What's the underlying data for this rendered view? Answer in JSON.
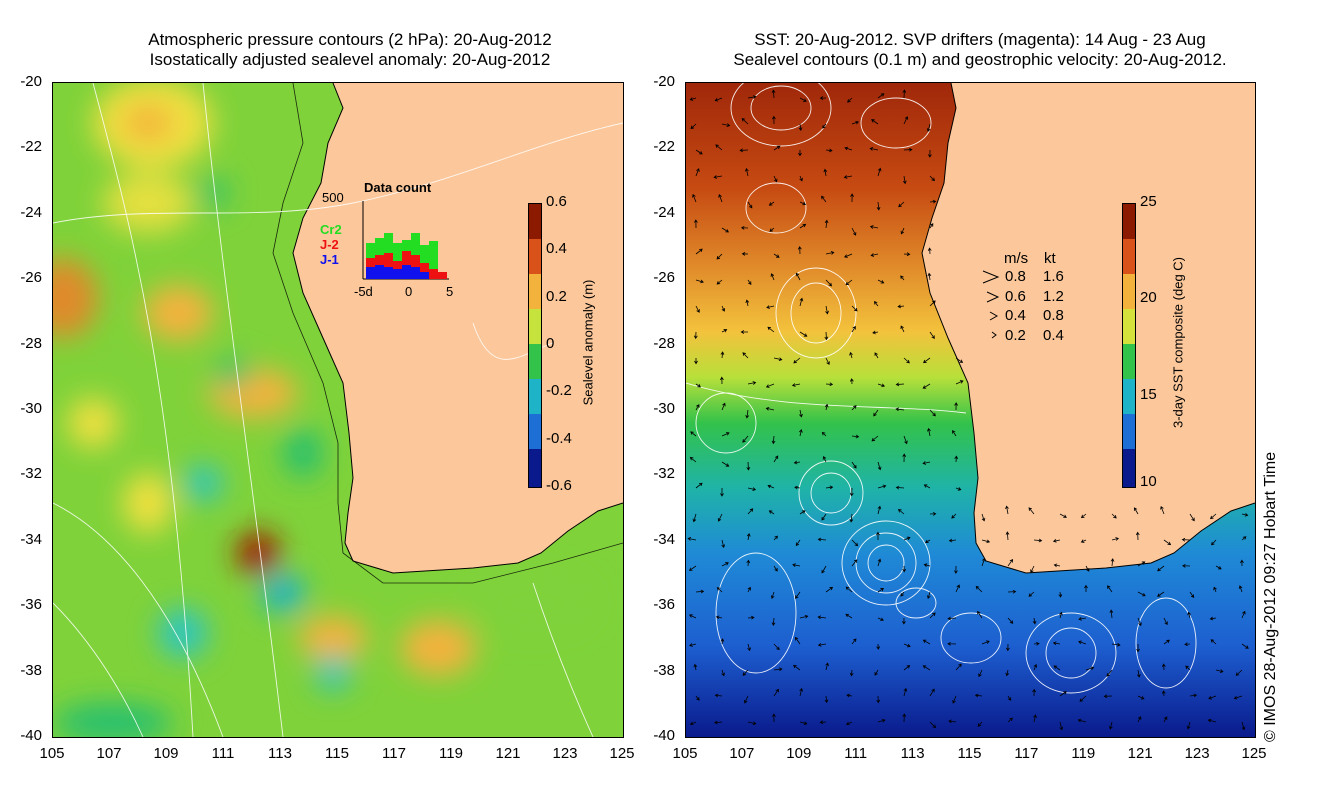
{
  "left_panel": {
    "title_line1": "Atmospheric pressure contours (2 hPa): 20-Aug-2012",
    "title_line2": "Isostatically adjusted sealevel anomaly: 20-Aug-2012",
    "colorbar": {
      "label": "Sealevel anomaly (m)",
      "ticks": [
        "0.6",
        "0.4",
        "0.2",
        "0",
        "-0.2",
        "-0.4",
        "-0.6"
      ],
      "colors": [
        "#8b1a00",
        "#d9521a",
        "#f3b23c",
        "#c6e23c",
        "#33c24a",
        "#1fb3c8",
        "#1d6fd6",
        "#0a1a8c"
      ]
    },
    "inset": {
      "title": "Data count",
      "ymax_label": "500",
      "legend": [
        {
          "name": "Cr2",
          "color": "#22dd22"
        },
        {
          "name": "J-2",
          "color": "#ee1111"
        },
        {
          "name": "J-1",
          "color": "#1111ee"
        }
      ],
      "xticks": [
        "-5d",
        "0",
        "5"
      ]
    }
  },
  "right_panel": {
    "title_line1": "SST: 20-Aug-2012. SVP drifters (magenta): 14 Aug - 23 Aug",
    "title_line2": "Sealevel contours (0.1 m) and geostrophic velocity: 20-Aug-2012.",
    "colorbar": {
      "label": "3-day SST composite (deg C)",
      "ticks": [
        "25",
        "20",
        "15",
        "10"
      ],
      "colors": [
        "#8b1a00",
        "#d9521a",
        "#f3b23c",
        "#d6e23c",
        "#33c24a",
        "#1fb3c8",
        "#1d6fd6",
        "#0a1a8c"
      ]
    },
    "velocity_legend": {
      "header_ms": "m/s",
      "header_kt": "kt",
      "rows": [
        {
          "ms": "0.8",
          "kt": "1.6"
        },
        {
          "ms": "0.6",
          "kt": "1.2"
        },
        {
          "ms": "0.4",
          "kt": "0.8"
        },
        {
          "ms": "0.2",
          "kt": "0.4"
        }
      ]
    }
  },
  "axes": {
    "lat_ticks": [
      "-20",
      "-22",
      "-24",
      "-26",
      "-28",
      "-30",
      "-32",
      "-34",
      "-36",
      "-38",
      "-40"
    ],
    "lon_ticks": [
      "105",
      "107",
      "109",
      "111",
      "113",
      "115",
      "117",
      "119",
      "121",
      "123",
      "125"
    ]
  },
  "colors": {
    "land": "#fcc89b",
    "map_border": "#000000"
  },
  "copyright": "© IMOS 28-Aug-2012 09:27 Hobart Time"
}
